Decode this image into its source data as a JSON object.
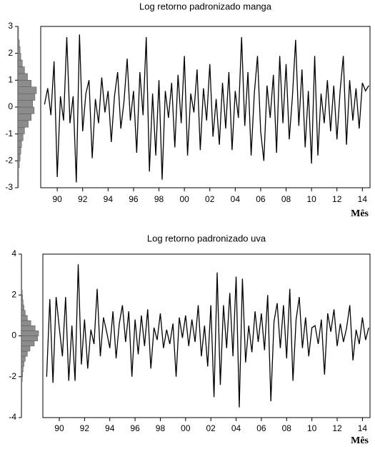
{
  "chart_data": [
    {
      "type": "line",
      "title": "Log retorno padronizado manga",
      "xlabel": "Mês",
      "color": "#000000",
      "x": [
        1989,
        1989.25,
        1989.5,
        1989.75,
        1990,
        1990.25,
        1990.5,
        1990.75,
        1991,
        1991.25,
        1991.5,
        1991.75,
        1992,
        1992.25,
        1992.5,
        1992.75,
        1993,
        1993.25,
        1993.5,
        1993.75,
        1994,
        1994.25,
        1994.5,
        1994.75,
        1995,
        1995.25,
        1995.5,
        1995.75,
        1996,
        1996.25,
        1996.5,
        1996.75,
        1997,
        1997.25,
        1997.5,
        1997.75,
        1998,
        1998.25,
        1998.5,
        1998.75,
        1999,
        1999.25,
        1999.5,
        1999.75,
        2000,
        2000.25,
        2000.5,
        2000.75,
        2001,
        2001.25,
        2001.5,
        2001.75,
        2002,
        2002.25,
        2002.5,
        2002.75,
        2003,
        2003.25,
        2003.5,
        2003.75,
        2004,
        2004.25,
        2004.5,
        2004.75,
        2005,
        2005.25,
        2005.5,
        2005.75,
        2006,
        2006.25,
        2006.5,
        2006.75,
        2007,
        2007.25,
        2007.5,
        2007.75,
        2008,
        2008.25,
        2008.5,
        2008.75,
        2009,
        2009.25,
        2009.5,
        2009.75,
        2010,
        2010.25,
        2010.5,
        2010.75,
        2011,
        2011.25,
        2011.5,
        2011.75,
        2012,
        2012.25,
        2012.5,
        2012.75,
        2013,
        2013.25,
        2013.5,
        2013.75,
        2014,
        2014.25,
        2014.5
      ],
      "values": [
        0.1,
        0.7,
        -0.3,
        1.7,
        -2.6,
        0.4,
        -0.5,
        2.6,
        -0.6,
        0.4,
        -2.8,
        2.7,
        -0.9,
        0.5,
        1.0,
        -1.9,
        0.3,
        -0.6,
        1.1,
        -0.2,
        0.6,
        -1.3,
        0.4,
        1.3,
        -0.8,
        0.2,
        1.8,
        -0.5,
        0.6,
        -1.7,
        1.3,
        -0.3,
        2.6,
        -2.4,
        0.5,
        -1.8,
        1.0,
        -2.7,
        0.6,
        -0.4,
        0.9,
        -1.5,
        1.2,
        -0.6,
        1.9,
        -1.8,
        0.5,
        -0.2,
        1.4,
        -1.6,
        0.7,
        -0.5,
        1.6,
        -1.1,
        0.3,
        -1.4,
        0.9,
        -0.8,
        1.3,
        -1.6,
        0.6,
        -0.4,
        2.6,
        -0.7,
        1.3,
        -1.8,
        0.5,
        1.9,
        -0.9,
        -2.0,
        0.8,
        -0.4,
        1.2,
        -1.7,
        1.9,
        -0.6,
        1.6,
        -1.2,
        0.4,
        2.5,
        -0.7,
        1.4,
        -1.5,
        0.6,
        -2.1,
        1.9,
        -1.8,
        0.5,
        -0.6,
        1.0,
        -0.9,
        0.8,
        -1.2,
        0.6,
        1.9,
        -1.4,
        1.0,
        -0.5,
        0.7,
        -0.8,
        0.9,
        0.6,
        0.8
      ],
      "xlim": [
        1988.7,
        2014.6
      ],
      "xticks": [
        {
          "value": 1990,
          "label": "90"
        },
        {
          "value": 1992,
          "label": "92"
        },
        {
          "value": 1994,
          "label": "94"
        },
        {
          "value": 1996,
          "label": "96"
        },
        {
          "value": 1998,
          "label": "98"
        },
        {
          "value": 2000,
          "label": "00"
        },
        {
          "value": 2002,
          "label": "02"
        },
        {
          "value": 2004,
          "label": "04"
        },
        {
          "value": 2006,
          "label": "06"
        },
        {
          "value": 2008,
          "label": "08"
        },
        {
          "value": 2010,
          "label": "10"
        },
        {
          "value": 2012,
          "label": "12"
        },
        {
          "value": 2014,
          "label": "14"
        }
      ],
      "ylim": [
        -3,
        3
      ],
      "yticks": [
        -3,
        -2,
        -1,
        0,
        1,
        2,
        3
      ],
      "histogram": {
        "color": "#8c8c8c",
        "bins": [
          -3,
          -2.75,
          -2.5,
          -2.25,
          -2,
          -1.75,
          -1.5,
          -1.25,
          -1,
          -0.75,
          -0.5,
          -0.25,
          0,
          0.25,
          0.5,
          0.75,
          1,
          1.25,
          1.5,
          1.75,
          2,
          2.25,
          2.5,
          2.75,
          3
        ],
        "counts": [
          1,
          1,
          1,
          2,
          3,
          4,
          5,
          7,
          9,
          14,
          18,
          22,
          20,
          23,
          25,
          18,
          13,
          9,
          6,
          4,
          3,
          2,
          1,
          1
        ]
      }
    },
    {
      "type": "line",
      "title": "Log retorno padronizado uva",
      "xlabel": "Mês",
      "color": "#000000",
      "x": [
        1989,
        1989.25,
        1989.5,
        1989.75,
        1990,
        1990.25,
        1990.5,
        1990.75,
        1991,
        1991.25,
        1991.5,
        1991.75,
        1992,
        1992.25,
        1992.5,
        1992.75,
        1993,
        1993.25,
        1993.5,
        1993.75,
        1994,
        1994.25,
        1994.5,
        1994.75,
        1995,
        1995.25,
        1995.5,
        1995.75,
        1996,
        1996.25,
        1996.5,
        1996.75,
        1997,
        1997.25,
        1997.5,
        1997.75,
        1998,
        1998.25,
        1998.5,
        1998.75,
        1999,
        1999.25,
        1999.5,
        1999.75,
        2000,
        2000.25,
        2000.5,
        2000.75,
        2001,
        2001.25,
        2001.5,
        2001.75,
        2002,
        2002.25,
        2002.5,
        2002.75,
        2003,
        2003.25,
        2003.5,
        2003.75,
        2004,
        2004.25,
        2004.5,
        2004.75,
        2005,
        2005.25,
        2005.5,
        2005.75,
        2006,
        2006.25,
        2006.5,
        2006.75,
        2007,
        2007.25,
        2007.5,
        2007.75,
        2008,
        2008.25,
        2008.5,
        2008.75,
        2009,
        2009.25,
        2009.5,
        2009.75,
        2010,
        2010.25,
        2010.5,
        2010.75,
        2011,
        2011.25,
        2011.5,
        2011.75,
        2012,
        2012.25,
        2012.5,
        2012.75,
        2013,
        2013.25,
        2013.5,
        2013.75,
        2014,
        2014.25,
        2014.5
      ],
      "values": [
        -2.0,
        1.8,
        -2.3,
        1.9,
        0.4,
        -1.0,
        1.9,
        -2.2,
        0.5,
        -2.2,
        3.5,
        -1.4,
        0.8,
        -1.6,
        0.3,
        -0.4,
        2.3,
        -1.0,
        0.9,
        0.2,
        -0.6,
        1.2,
        -1.1,
        0.6,
        1.5,
        -0.3,
        1.2,
        -2.0,
        0.8,
        -0.9,
        1.0,
        -0.5,
        1.3,
        -1.6,
        0.4,
        -0.2,
        1.1,
        -0.6,
        0.3,
        -0.4,
        0.6,
        -2.0,
        0.9,
        -0.1,
        1.0,
        -0.5,
        0.8,
        -0.3,
        1.5,
        -1.0,
        0.5,
        -1.5,
        1.5,
        -3.0,
        3.1,
        -2.4,
        1.5,
        -0.6,
        2.1,
        -1.0,
        2.9,
        -3.5,
        2.8,
        -1.3,
        0.5,
        -0.8,
        1.2,
        -0.3,
        1.1,
        -0.7,
        2.0,
        -3.2,
        0.7,
        1.6,
        -0.6,
        1.5,
        -1.1,
        2.3,
        -2.2,
        0.8,
        1.9,
        -0.6,
        0.9,
        -1.0,
        0.4,
        0.5,
        -0.4,
        0.8,
        -1.9,
        1.1,
        0.2,
        1.3,
        -0.5,
        0.6,
        -0.3,
        0.4,
        1.5,
        -1.2,
        0.3,
        -0.4,
        0.9,
        -0.2,
        0.4
      ],
      "xlim": [
        1988.7,
        2014.6
      ],
      "xticks": [
        {
          "value": 1990,
          "label": "90"
        },
        {
          "value": 1992,
          "label": "92"
        },
        {
          "value": 1994,
          "label": "94"
        },
        {
          "value": 1996,
          "label": "96"
        },
        {
          "value": 1998,
          "label": "98"
        },
        {
          "value": 2000,
          "label": "00"
        },
        {
          "value": 2002,
          "label": "02"
        },
        {
          "value": 2004,
          "label": "04"
        },
        {
          "value": 2006,
          "label": "06"
        },
        {
          "value": 2008,
          "label": "08"
        },
        {
          "value": 2010,
          "label": "10"
        },
        {
          "value": 2012,
          "label": "12"
        },
        {
          "value": 2014,
          "label": "14"
        }
      ],
      "ylim": [
        -4,
        4
      ],
      "yticks": [
        -4,
        -2,
        0,
        2,
        4
      ],
      "histogram": {
        "color": "#8c8c8c",
        "bins": [
          -4,
          -3.75,
          -3.5,
          -3.25,
          -3,
          -2.75,
          -2.5,
          -2.25,
          -2,
          -1.75,
          -1.5,
          -1.25,
          -1,
          -0.75,
          -0.5,
          -0.25,
          0,
          0.25,
          0.5,
          0.75,
          1,
          1.25,
          1.5,
          1.75,
          2,
          2.25,
          2.5,
          2.75,
          3,
          3.25,
          3.5,
          3.75,
          4
        ],
        "counts": [
          0,
          0,
          1,
          1,
          1,
          1,
          1,
          2,
          3,
          4,
          6,
          9,
          14,
          20,
          30,
          38,
          40,
          32,
          22,
          14,
          9,
          6,
          4,
          3,
          2,
          1,
          1,
          1,
          1,
          0,
          0,
          1
        ]
      }
    }
  ]
}
